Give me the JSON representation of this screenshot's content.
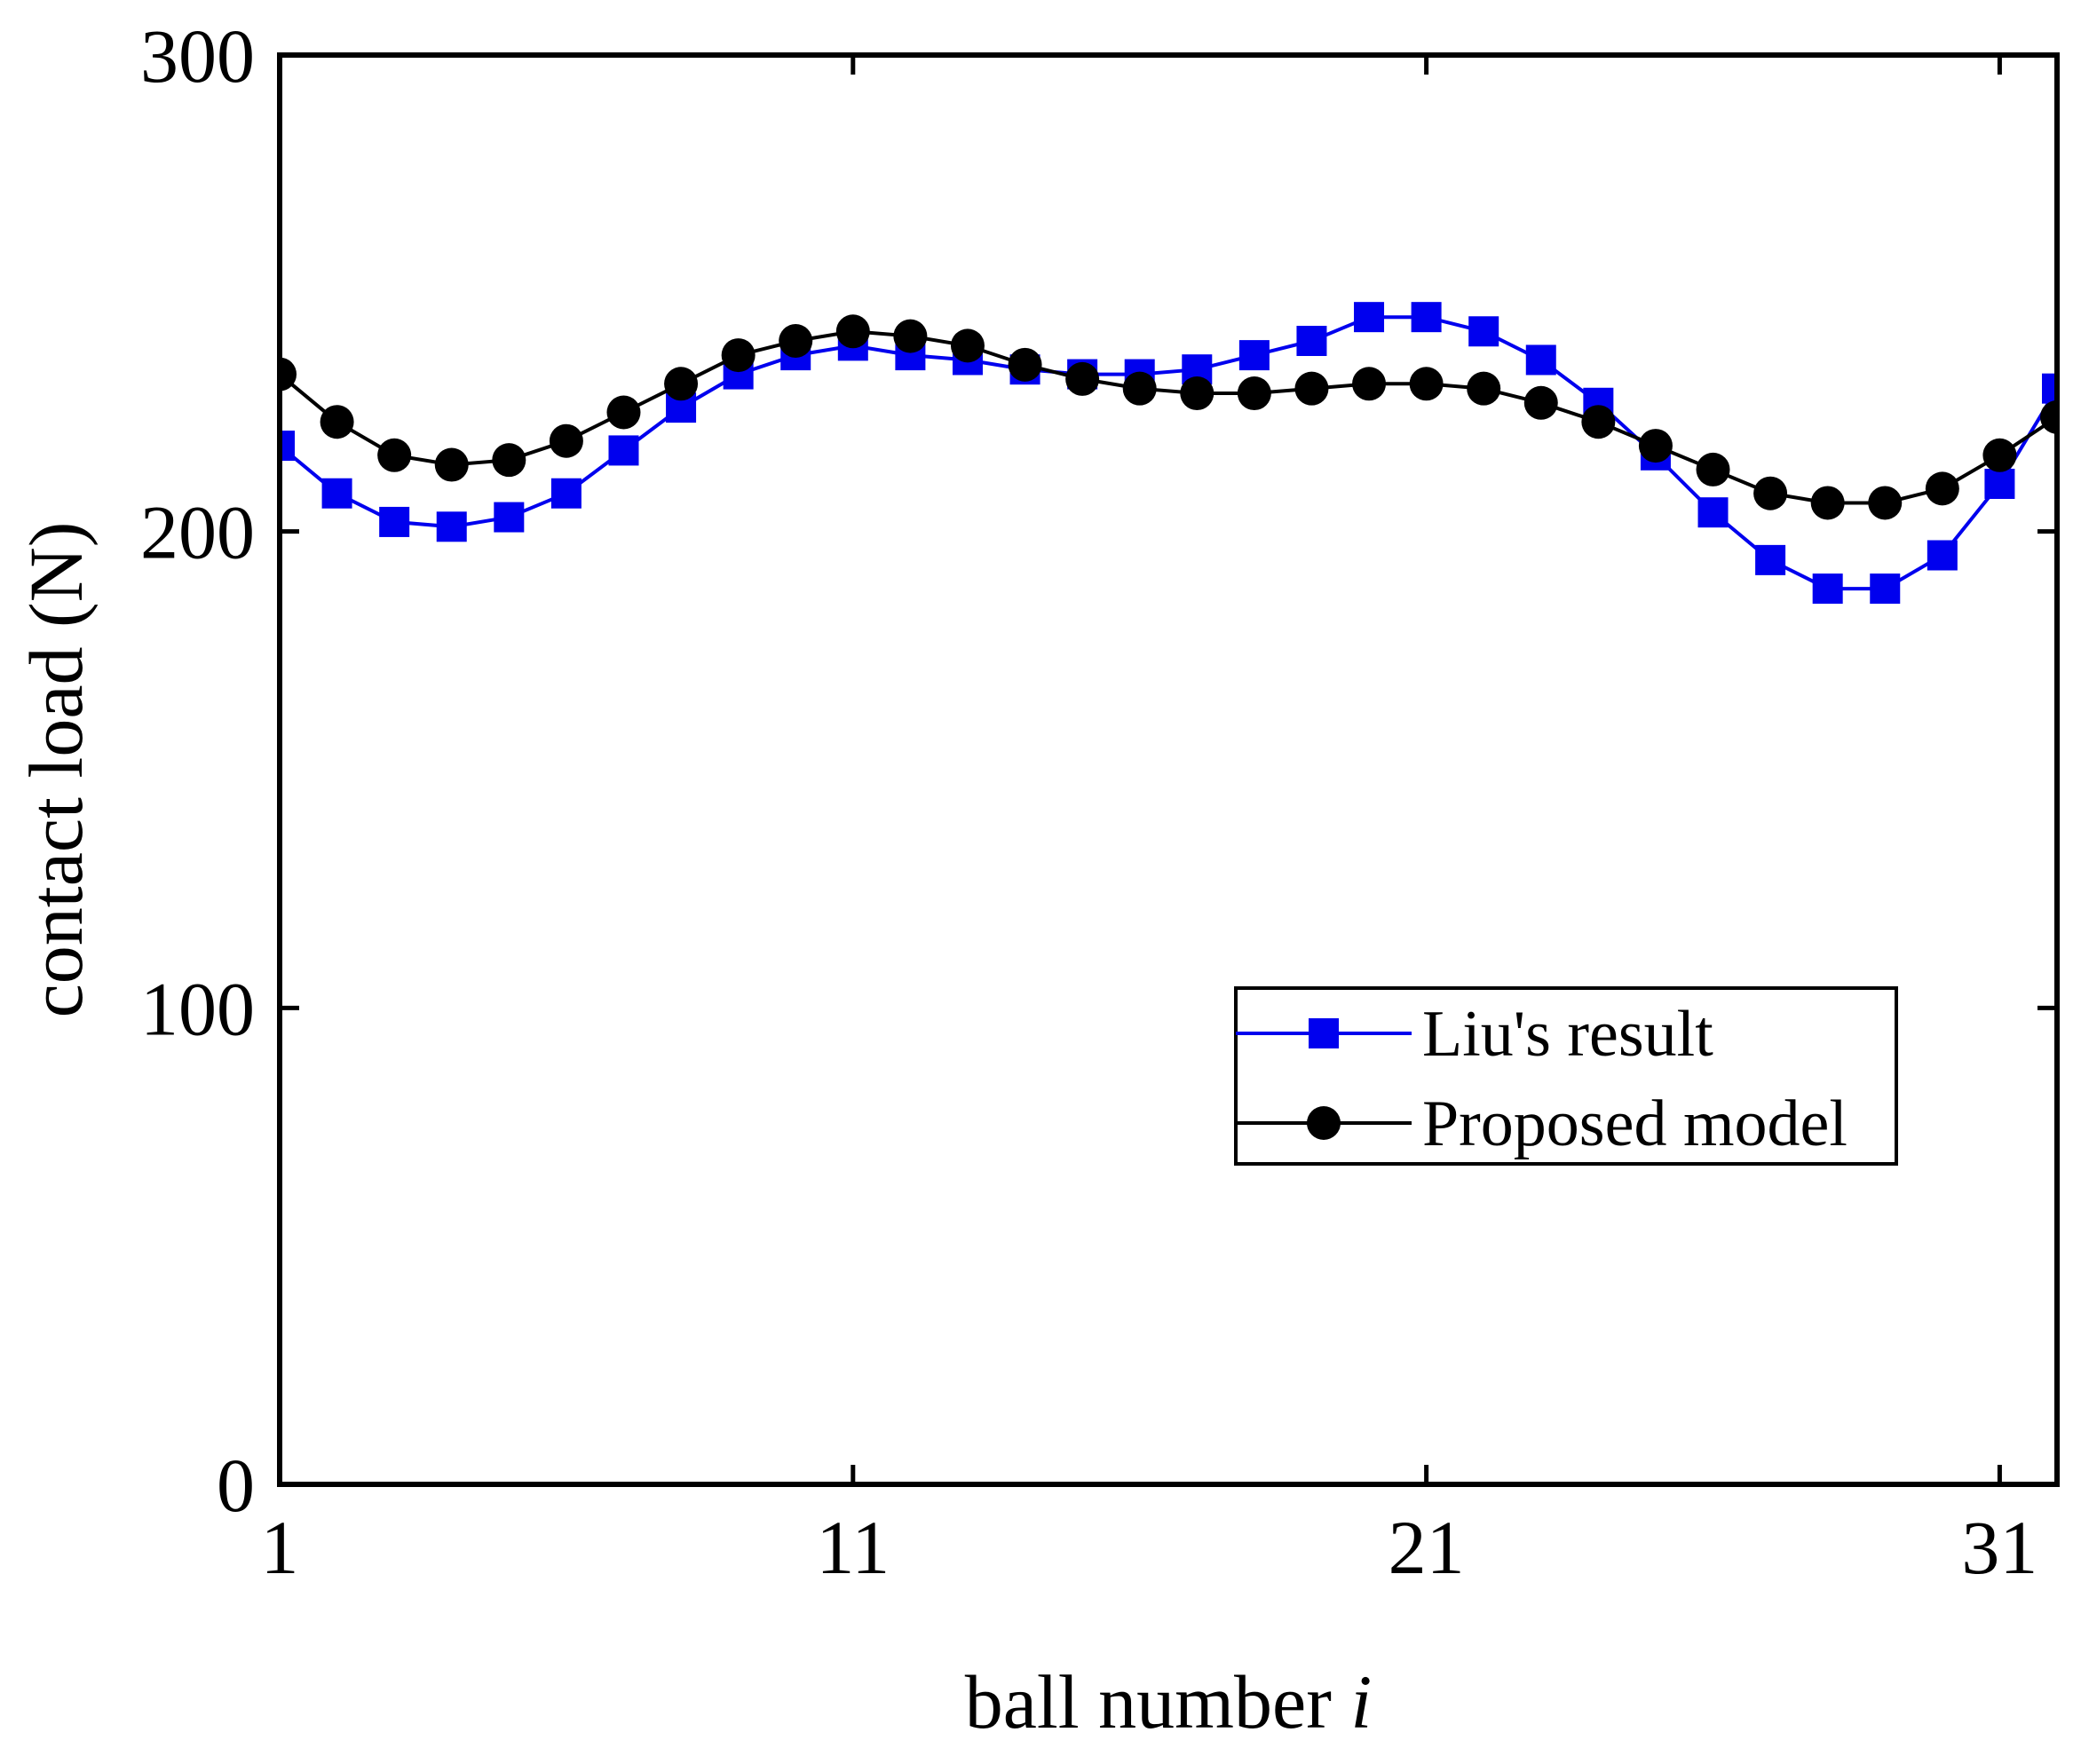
{
  "chart_data": {
    "type": "line",
    "title": "",
    "xlabel": "ball number",
    "xlabel_var": "i",
    "ylabel": "contact load (N)",
    "xlim": [
      1,
      32
    ],
    "ylim": [
      0,
      300
    ],
    "xticks": [
      1,
      11,
      21,
      31
    ],
    "yticks": [
      0,
      100,
      200,
      300
    ],
    "xtick_labels": [
      "1",
      "11",
      "21",
      "31"
    ],
    "ytick_labels": [
      "0",
      "100",
      "200",
      "300"
    ],
    "grid": false,
    "legend_position": "lower-right",
    "x": [
      1,
      2,
      3,
      4,
      5,
      6,
      7,
      8,
      9,
      10,
      11,
      12,
      13,
      14,
      15,
      16,
      17,
      18,
      19,
      20,
      21,
      22,
      23,
      24,
      25,
      26,
      27,
      28,
      29,
      30,
      31,
      32
    ],
    "series": [
      {
        "name": "Liu's result",
        "color": "#0000ee",
        "marker": "square",
        "values": [
          218,
          208,
          202,
          201,
          203,
          208,
          217,
          226,
          233,
          237,
          239,
          237,
          236,
          234,
          233,
          233,
          234,
          237,
          240,
          245,
          245,
          242,
          236,
          227,
          216,
          204,
          194,
          188,
          188,
          195,
          210,
          230
        ]
      },
      {
        "name": "Proposed model",
        "color": "#000000",
        "marker": "circle",
        "values": [
          233,
          223,
          216,
          214,
          215,
          219,
          225,
          231,
          237,
          240,
          242,
          241,
          239,
          235,
          232,
          230,
          229,
          229,
          230,
          231,
          231,
          230,
          227,
          223,
          218,
          213,
          208,
          206,
          206,
          209,
          216,
          224
        ]
      }
    ]
  }
}
